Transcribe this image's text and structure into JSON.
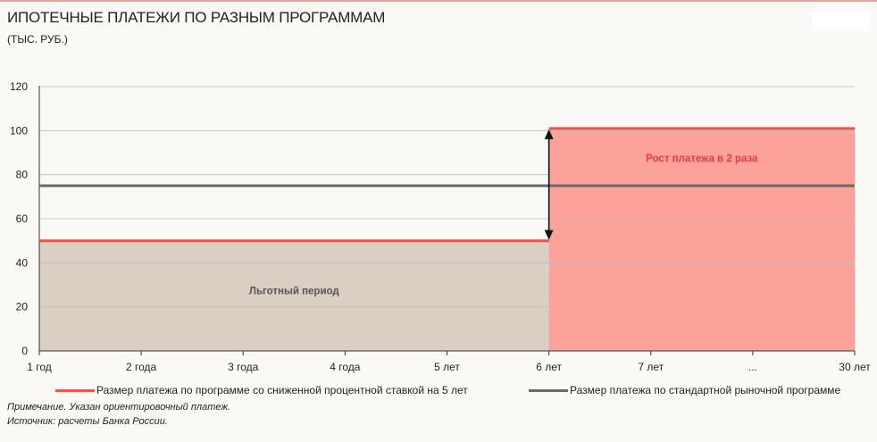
{
  "header": {
    "title": "ИПОТЕЧНЫЕ ПЛАТЕЖИ ПО РАЗНЫМ ПРОГРАММАМ",
    "subtitle": "(ТЫС. РУБ.)"
  },
  "colors": {
    "subsidized_line": "#f0544f",
    "market_line": "#6b6b6b",
    "grace_fill": "#d9cfc3",
    "increase_fill": "#fda298",
    "annotation_red": "#e8384a",
    "grid": "#bdbdbd",
    "axis": "#333333"
  },
  "chart_data": {
    "type": "line",
    "categories": [
      "1 год",
      "2 года",
      "3 года",
      "4 года",
      "5 лет",
      "6 лет",
      "7 лет",
      "...",
      "30 лет"
    ],
    "ylim": [
      0,
      120
    ],
    "yticks": [
      0,
      20,
      40,
      60,
      80,
      100,
      120
    ],
    "grid": true,
    "legend_position": "bottom",
    "series": [
      {
        "name": "Размер платежа по программе со сниженной процентной ставкой на 5 лет",
        "color": "#f0544f",
        "segments": [
          {
            "from": "1 год",
            "to": "6 лет",
            "value": 50
          },
          {
            "from": "6 лет",
            "to": "30 лет",
            "value": 101
          }
        ]
      },
      {
        "name": "Размер платежа по стандартной рыночной программе",
        "color": "#6b6b6b",
        "segments": [
          {
            "from": "1 год",
            "to": "30 лет",
            "value": 75
          }
        ]
      }
    ],
    "annotations": {
      "grace_period": "Льготный период",
      "growth": "Рост платежа в 2 раза"
    }
  },
  "footer": {
    "note": "Примечание. Указан ориентировочный платеж.",
    "source": "Источник: расчеты Банка России."
  }
}
